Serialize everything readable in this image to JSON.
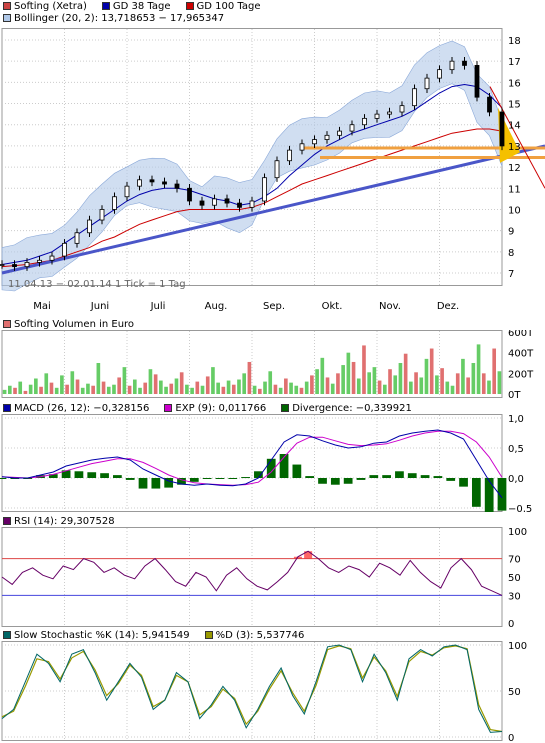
{
  "colors": {
    "price": "#000000",
    "up_candle": "#ffffff",
    "down_candle": "#000000",
    "gd38": "#0000aa",
    "gd100": "#cc0000",
    "bollinger": "#b0c8e8",
    "trend": "#4a56c8",
    "support": "#f0a040",
    "vol_up": "#66cc66",
    "vol_down": "#e07070",
    "macd": "#0000aa",
    "exp": "#cc00cc",
    "divergence": "#006600",
    "rsi": "#660066",
    "rsi_fill": "#ff6666",
    "stoch_k": "#006666",
    "stoch_d": "#999900",
    "grid": "#cccccc"
  },
  "price_panel": {
    "legend": [
      {
        "label": "Softing (Xetra)",
        "swatch": "#cc4444"
      },
      {
        "label": "GD 38 Tage",
        "swatch": "#0000aa"
      },
      {
        "label": "GD 100 Tage",
        "swatch": "#cc0000"
      }
    ],
    "bollinger_legend": {
      "label": "Bollinger (20, 2): 13,718653 − 17,965347",
      "swatch": "#b0c8e8"
    },
    "info_text": "11.04.13 − 02.01.14   1 Tick = 1 Tag",
    "y_ticks": [
      "7",
      "8",
      "9",
      "10",
      "11",
      "12",
      "13",
      "14",
      "15",
      "16",
      "17",
      "18"
    ],
    "x_ticks": [
      "Mai",
      "Juni",
      "Juli",
      "Aug.",
      "Sep.",
      "Okt.",
      "Nov.",
      "Dez."
    ]
  },
  "volume_panel": {
    "legend": {
      "label": "Softing Volumen in Euro",
      "swatch": "#e07070"
    },
    "y_ticks": [
      "0T",
      "200T",
      "400T",
      "600T"
    ]
  },
  "macd_panel": {
    "legend": [
      {
        "label": "MACD (26, 12): −0,328156",
        "swatch": "#0000aa"
      },
      {
        "label": "EXP (9): 0,011766",
        "swatch": "#cc00cc"
      },
      {
        "label": "Divergence: −0,339921",
        "swatch": "#006600"
      }
    ],
    "y_ticks": [
      "1,0",
      "0,5",
      "0,0",
      "−0,5"
    ]
  },
  "rsi_panel": {
    "legend": {
      "label": "RSI (14): 29,307528",
      "swatch": "#660066"
    },
    "y_ticks": [
      "100",
      "70",
      "50",
      "30",
      "0"
    ]
  },
  "stoch_panel": {
    "legend": [
      {
        "label": "Slow Stochastic %K (14): 5,941549",
        "swatch": "#006666"
      },
      {
        "label": "%D (3): 5,537746",
        "swatch": "#999900"
      }
    ],
    "y_ticks": [
      "100",
      "50",
      "0"
    ]
  },
  "chart_data": [
    {
      "type": "line",
      "title": "Softing (Xetra)",
      "ylim": [
        7,
        18
      ],
      "x_tick_labels": [
        "Mai",
        "Juni",
        "Juli",
        "Aug.",
        "Sep.",
        "Okt.",
        "Nov.",
        "Dez."
      ],
      "series": [
        {
          "name": "Softing (Xetra)",
          "values": [
            7.4,
            7.3,
            7.5,
            7.6,
            7.8,
            8.4,
            8.9,
            9.5,
            10.0,
            10.6,
            11.1,
            11.4,
            11.3,
            11.2,
            11.0,
            10.4,
            10.2,
            10.5,
            10.3,
            10.1,
            10.4,
            11.5,
            12.3,
            12.8,
            13.1,
            13.3,
            13.5,
            13.7,
            14.0,
            14.3,
            14.5,
            14.6,
            14.9,
            15.7,
            16.2,
            16.6,
            17.0,
            16.8,
            15.3,
            14.6,
            13.0
          ]
        },
        {
          "name": "GD 38 Tage",
          "values": [
            7.4,
            7.5,
            7.6,
            7.8,
            8.0,
            8.4,
            8.8,
            9.2,
            9.6,
            10.0,
            10.4,
            10.7,
            10.9,
            11.0,
            11.0,
            10.9,
            10.7,
            10.5,
            10.4,
            10.2,
            10.3,
            10.6,
            11.0,
            11.6,
            12.1,
            12.6,
            13.0,
            13.3,
            13.6,
            13.8,
            14.0,
            14.2,
            14.4,
            14.7,
            15.1,
            15.5,
            15.8,
            15.9,
            15.8,
            15.4,
            14.8
          ]
        },
        {
          "name": "GD 100 Tage",
          "values": [
            7.3,
            7.35,
            7.4,
            7.5,
            7.6,
            7.8,
            8.0,
            8.2,
            8.5,
            8.7,
            9.0,
            9.3,
            9.5,
            9.7,
            9.9,
            10.0,
            10.0,
            10.0,
            10.0,
            10.0,
            10.1,
            10.3,
            10.6,
            10.9,
            11.2,
            11.4,
            11.6,
            11.8,
            12.0,
            12.2,
            12.4,
            12.6,
            12.8,
            13.0,
            13.2,
            13.4,
            13.6,
            13.7,
            13.8,
            13.8,
            13.7
          ]
        }
      ]
    },
    {
      "type": "bar",
      "title": "Softing Volumen in Euro",
      "ylim": [
        0,
        600
      ],
      "series": [
        {
          "name": "Softing Volumen in Euro",
          "values": [
            40,
            80,
            60,
            120,
            30,
            90,
            150,
            70,
            200,
            110,
            60,
            180,
            90,
            220,
            140,
            60,
            100,
            80,
            300,
            120,
            70,
            90,
            160,
            260,
            80,
            140,
            60,
            110,
            240,
            190,
            130,
            70,
            100,
            150,
            210,
            90,
            60,
            120,
            80,
            170,
            260,
            110,
            70,
            130,
            90,
            140,
            200,
            310,
            80,
            50,
            120,
            220,
            90,
            60,
            150,
            110,
            80,
            60,
            120,
            180,
            240,
            350,
            160,
            100,
            200,
            280,
            400,
            310,
            150,
            470,
            210,
            260,
            130,
            90,
            240,
            180,
            300,
            390,
            120,
            210,
            160,
            340,
            440,
            180,
            250,
            120,
            80,
            200,
            340,
            160,
            300,
            480,
            200,
            130,
            440,
            220
          ]
        }
      ]
    },
    {
      "type": "line",
      "title": "MACD",
      "ylim": [
        -0.5,
        1.0
      ],
      "series": [
        {
          "name": "MACD (26, 12)",
          "values": [
            0.02,
            0.0,
            0.0,
            0.05,
            0.1,
            0.2,
            0.25,
            0.3,
            0.33,
            0.35,
            0.3,
            0.15,
            0.05,
            -0.05,
            -0.1,
            -0.12,
            -0.1,
            -0.12,
            -0.13,
            -0.1,
            0.0,
            0.3,
            0.6,
            0.72,
            0.7,
            0.62,
            0.55,
            0.5,
            0.52,
            0.58,
            0.6,
            0.7,
            0.75,
            0.78,
            0.8,
            0.75,
            0.65,
            0.3,
            -0.05,
            -0.33
          ]
        },
        {
          "name": "EXP (9)",
          "values": [
            0.02,
            0.01,
            0.0,
            0.02,
            0.06,
            0.12,
            0.18,
            0.24,
            0.28,
            0.32,
            0.32,
            0.26,
            0.16,
            0.05,
            -0.03,
            -0.08,
            -0.1,
            -0.11,
            -0.12,
            -0.11,
            -0.07,
            0.1,
            0.35,
            0.58,
            0.68,
            0.68,
            0.62,
            0.56,
            0.54,
            0.55,
            0.57,
            0.63,
            0.7,
            0.75,
            0.78,
            0.78,
            0.74,
            0.6,
            0.35,
            0.01
          ]
        }
      ]
    },
    {
      "type": "line",
      "title": "RSI (14)",
      "ylim": [
        0,
        100
      ],
      "series": [
        {
          "name": "RSI (14)",
          "values": [
            50,
            42,
            55,
            60,
            52,
            48,
            62,
            58,
            70,
            66,
            55,
            60,
            52,
            48,
            62,
            70,
            58,
            45,
            40,
            55,
            50,
            35,
            52,
            60,
            48,
            40,
            36,
            45,
            55,
            72,
            78,
            70,
            60,
            55,
            62,
            58,
            50,
            65,
            60,
            52,
            68,
            55,
            45,
            38,
            60,
            70,
            58,
            40,
            35,
            30
          ]
        }
      ]
    },
    {
      "type": "line",
      "title": "Slow Stochastic",
      "ylim": [
        0,
        100
      ],
      "series": [
        {
          "name": "Slow Stochastic %K (14)",
          "values": [
            20,
            30,
            60,
            90,
            80,
            60,
            90,
            95,
            70,
            40,
            60,
            80,
            65,
            30,
            40,
            70,
            60,
            20,
            35,
            55,
            40,
            10,
            30,
            55,
            75,
            45,
            25,
            60,
            98,
            100,
            95,
            60,
            90,
            70,
            40,
            85,
            95,
            88,
            98,
            100,
            95,
            30,
            5,
            6
          ]
        },
        {
          "name": "%D (3)",
          "values": [
            22,
            28,
            55,
            85,
            82,
            63,
            86,
            93,
            73,
            45,
            58,
            78,
            67,
            33,
            40,
            67,
            60,
            24,
            33,
            52,
            42,
            14,
            28,
            52,
            72,
            48,
            28,
            56,
            95,
            99,
            96,
            64,
            87,
            72,
            44,
            82,
            93,
            89,
            97,
            99,
            96,
            35,
            8,
            6
          ]
        }
      ]
    }
  ]
}
